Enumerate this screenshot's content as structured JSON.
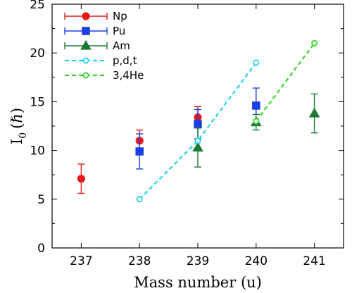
{
  "chart_data": {
    "type": "scatter",
    "xlabel": "Mass number (u)",
    "ylabel_main": "I",
    "ylabel_sub": "0",
    "ylabel_unit": "(ℏ)",
    "xlim": [
      236.5,
      241.5
    ],
    "ylim": [
      0,
      25
    ],
    "x_ticks": [
      237,
      238,
      239,
      240,
      241
    ],
    "y_ticks": [
      0,
      5,
      10,
      15,
      20,
      25
    ],
    "legend_position": "top-left",
    "grid": false,
    "series": [
      {
        "name": "Np",
        "color": "#e41a1c",
        "marker": "circle",
        "filled": true,
        "errorbars": true,
        "points": [
          {
            "x": 237,
            "y": 7.1,
            "err": 1.5
          },
          {
            "x": 238,
            "y": 11.0,
            "err": 1.1
          },
          {
            "x": 239,
            "y": 13.4,
            "err": 1.1
          }
        ]
      },
      {
        "name": "Pu",
        "color": "#1a3fe4",
        "marker": "square",
        "filled": true,
        "errorbars": true,
        "points": [
          {
            "x": 238,
            "y": 9.9,
            "err": 1.8
          },
          {
            "x": 239,
            "y": 12.7,
            "err": 1.5
          },
          {
            "x": 240,
            "y": 14.6,
            "err": 1.8
          }
        ]
      },
      {
        "name": "Am",
        "color": "#1a7a35",
        "marker": "triangle",
        "filled": true,
        "errorbars": true,
        "points": [
          {
            "x": 239,
            "y": 10.3,
            "err": 2.0
          },
          {
            "x": 240,
            "y": 12.9,
            "err": 0.8
          },
          {
            "x": 241,
            "y": 13.8,
            "err": 2.0
          }
        ]
      },
      {
        "name": "p,d,t",
        "color": "#22d3ee",
        "marker": "circle",
        "filled": false,
        "line": "dashed",
        "errorbars": false,
        "points": [
          {
            "x": 238,
            "y": 5.0
          },
          {
            "x": 239,
            "y": 11.0
          },
          {
            "x": 240,
            "y": 19.0
          }
        ]
      },
      {
        "name": "3,4He",
        "color": "#39d62b",
        "marker": "circle",
        "filled": false,
        "line": "dashed",
        "errorbars": false,
        "points": [
          {
            "x": 240,
            "y": 13.0
          },
          {
            "x": 241,
            "y": 21.0
          }
        ]
      }
    ]
  }
}
